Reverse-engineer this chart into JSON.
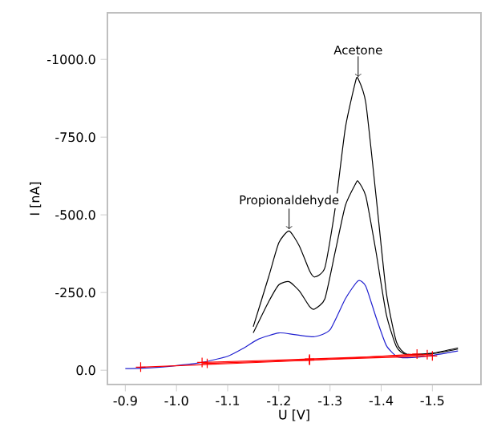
{
  "chart_data": {
    "type": "line",
    "xlabel": "U [V]",
    "ylabel": "I [nA]",
    "xlim": [
      -0.865,
      -1.595
    ],
    "ylim": [
      46,
      -1150
    ],
    "xticks": [
      -0.9,
      {
        "value": -1.0,
        "label": "-1.0"
      },
      -1.1,
      -1.2,
      -1.3,
      -1.4,
      -1.5
    ],
    "yticks": [
      {
        "value": 0,
        "label": "0.0"
      },
      {
        "value": -250,
        "label": "-250.0"
      },
      {
        "value": -500,
        "label": "-500.0"
      },
      {
        "value": -750,
        "label": "-750.0"
      },
      {
        "value": -1000,
        "label": "-1000.0"
      }
    ],
    "grid": false,
    "marker": "none",
    "line_style": "solid",
    "series": [
      {
        "color": "#000000",
        "x": [
          -1.15,
          -1.18,
          -1.2,
          -1.22,
          -1.24,
          -1.26,
          -1.27,
          -1.29,
          -1.31,
          -1.33,
          -1.35,
          -1.355,
          -1.37,
          -1.39,
          -1.41,
          -1.43,
          -1.45,
          -1.5,
          -1.55
        ],
        "values": [
          -140,
          -300,
          -410,
          -448,
          -400,
          -320,
          -300,
          -330,
          -520,
          -780,
          -930,
          -938,
          -860,
          -560,
          -250,
          -90,
          -52,
          -55,
          -72
        ]
      },
      {
        "color": "#000000",
        "x": [
          -1.15,
          -1.18,
          -1.2,
          -1.22,
          -1.24,
          -1.26,
          -1.27,
          -1.29,
          -1.31,
          -1.33,
          -1.35,
          -1.355,
          -1.37,
          -1.39,
          -1.41,
          -1.43,
          -1.45,
          -1.5,
          -1.55
        ],
        "values": [
          -120,
          -220,
          -275,
          -285,
          -255,
          -205,
          -197,
          -230,
          -380,
          -530,
          -600,
          -608,
          -560,
          -380,
          -180,
          -75,
          -50,
          -53,
          -68
        ]
      },
      {
        "color": "#2020d0",
        "x": [
          -0.9,
          -0.95,
          -1.0,
          -1.05,
          -1.1,
          -1.13,
          -1.16,
          -1.2,
          -1.23,
          -1.27,
          -1.3,
          -1.33,
          -1.355,
          -1.37,
          -1.39,
          -1.41,
          -1.43,
          -1.45,
          -1.5,
          -1.55
        ],
        "values": [
          -5,
          -8,
          -15,
          -25,
          -45,
          -70,
          -100,
          -120,
          -115,
          -108,
          -130,
          -230,
          -288,
          -270,
          -170,
          -80,
          -45,
          -40,
          -48,
          -62
        ]
      },
      {
        "color": "#ff0000",
        "marker": "cross",
        "x": [
          -0.93,
          -1.26,
          -1.47
        ],
        "values": [
          -10,
          -32,
          -52
        ]
      },
      {
        "color": "#ff0000",
        "marker": "cross",
        "x": [
          -1.05,
          -1.26,
          -1.49
        ],
        "values": [
          -25,
          -36,
          -50
        ]
      },
      {
        "color": "#ff0000",
        "marker": "cross",
        "x": [
          -1.06,
          -1.26,
          -1.5
        ],
        "values": [
          -22,
          -33,
          -46
        ]
      }
    ],
    "annotations": [
      {
        "text": "Propionaldehyde",
        "x": -1.22,
        "y": -448
      },
      {
        "text": "Acetone",
        "x": -1.355,
        "y": -938
      }
    ]
  }
}
